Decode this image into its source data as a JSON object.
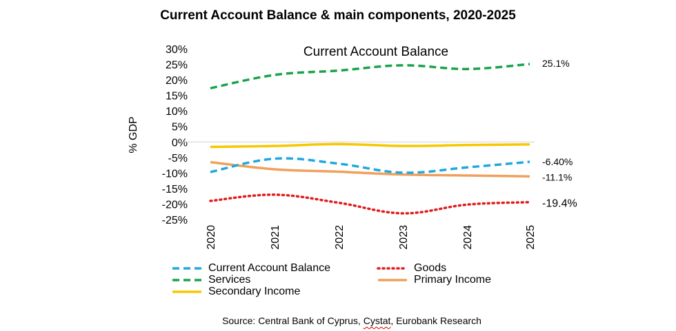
{
  "title": "Current Account Balance & main components, 2020-2025",
  "source": {
    "prefix": "Source: Central Bank of Cyprus, ",
    "cystat": "Cystat",
    "suffix": ", Eurobank Research"
  },
  "chart_data": {
    "type": "line",
    "title": "Current Account Balance",
    "ylabel": "% GDP",
    "xlabel": "",
    "x": [
      "2020",
      "2021",
      "2022",
      "2023",
      "2024",
      "2025"
    ],
    "ylim": [
      -25,
      30
    ],
    "yticks": [
      30,
      25,
      20,
      15,
      10,
      5,
      0,
      -5,
      -10,
      -15,
      -20,
      -25
    ],
    "ytick_labels": [
      "30%",
      "25%",
      "20%",
      "15%",
      "10%",
      "5%",
      "0%",
      "-5%",
      "-10%",
      "-15%",
      "-20%",
      "-25%"
    ],
    "grid": false,
    "legend_position": "bottom",
    "series": [
      {
        "name": "Current Account Balance",
        "values": [
          -9.7,
          -5.4,
          -7.0,
          -9.9,
          -8.2,
          -6.4
        ],
        "color": "#1fa7e0",
        "style": "dashed",
        "end_label": "-6.40%"
      },
      {
        "name": "Goods",
        "values": [
          -19.0,
          -17.0,
          -19.6,
          -23.0,
          -20.2,
          -19.4
        ],
        "color": "#e01c1c",
        "style": "dotted",
        "end_label": "-19.4%"
      },
      {
        "name": "Services",
        "values": [
          17.3,
          21.6,
          23.0,
          24.7,
          23.5,
          25.1
        ],
        "color": "#18a34a",
        "style": "dashed",
        "end_label": "25.1%"
      },
      {
        "name": "Primary Income",
        "values": [
          -6.5,
          -8.8,
          -9.6,
          -10.5,
          -10.8,
          -11.1
        ],
        "color": "#f0a05c",
        "style": "solid",
        "end_label": "-11.1%"
      },
      {
        "name": "Secondary Income",
        "values": [
          -1.6,
          -1.3,
          -0.7,
          -1.3,
          -1.0,
          -0.8
        ],
        "color": "#f5c800",
        "style": "solid",
        "end_label": ""
      }
    ]
  }
}
